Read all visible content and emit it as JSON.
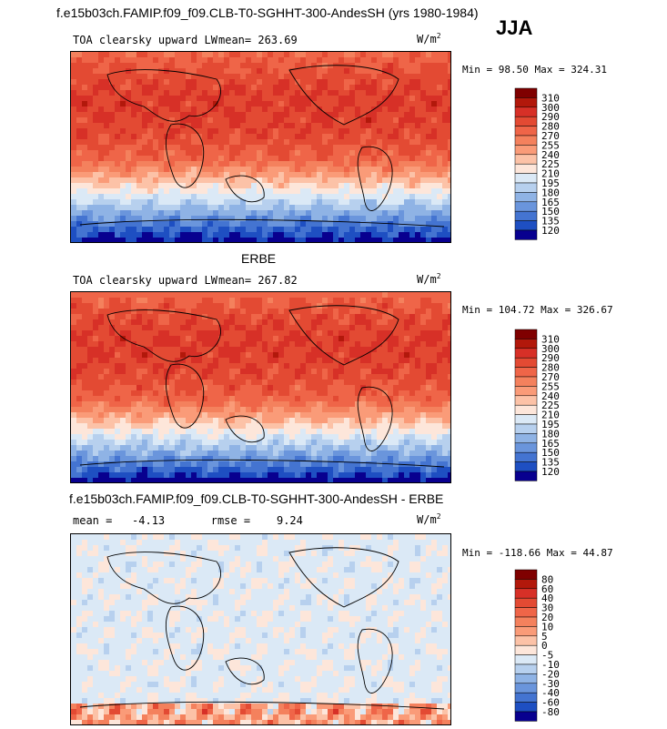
{
  "header": {
    "title": "f.e15b03ch.FAMIP.f09_f09.CLB-T0-SGHHT-300-AndesSH (yrs 1980-1984)",
    "season": "JJA"
  },
  "panels": [
    {
      "id": "model",
      "section_title": "",
      "variable": "TOA clearsky upward LW",
      "stat_text": "mean= 263.69",
      "units": "W/m",
      "units_sup": "2",
      "minmax": "Min =  98.50 Max = 324.31",
      "colorbar": {
        "labels": [
          "310",
          "300",
          "290",
          "280",
          "270",
          "255",
          "240",
          "225",
          "210",
          "195",
          "180",
          "165",
          "150",
          "135",
          "120"
        ],
        "colors": [
          "#7f0000",
          "#b2180b",
          "#d73027",
          "#e34a33",
          "#ef6548",
          "#f4815d",
          "#fa9b78",
          "#fcc2a7",
          "#fde6da",
          "#dbe9f6",
          "#b7d0ee",
          "#8fb3e5",
          "#6a95dc",
          "#4474d1",
          "#1e4fc2",
          "#08008f"
        ]
      },
      "chart_data": {
        "type": "heatmap",
        "title": "TOA clearsky upward LW",
        "xlabel": "",
        "ylabel": "",
        "mean": 263.69,
        "min": 98.5,
        "max": 324.31
      }
    },
    {
      "id": "obs",
      "section_title": "ERBE",
      "variable": "TOA clearsky upward LW",
      "stat_text": "mean= 267.82",
      "units": "W/m",
      "units_sup": "2",
      "minmax": "Min = 104.72 Max = 326.67",
      "colorbar": {
        "labels": [
          "310",
          "300",
          "290",
          "280",
          "270",
          "255",
          "240",
          "225",
          "210",
          "195",
          "180",
          "165",
          "150",
          "135",
          "120"
        ],
        "colors": [
          "#7f0000",
          "#b2180b",
          "#d73027",
          "#e34a33",
          "#ef6548",
          "#f4815d",
          "#fa9b78",
          "#fcc2a7",
          "#fde6da",
          "#dbe9f6",
          "#b7d0ee",
          "#8fb3e5",
          "#6a95dc",
          "#4474d1",
          "#1e4fc2",
          "#08008f"
        ]
      },
      "chart_data": {
        "type": "heatmap",
        "title": "TOA clearsky upward LW",
        "xlabel": "",
        "ylabel": "",
        "mean": 267.82,
        "min": 104.72,
        "max": 326.67
      }
    },
    {
      "id": "diff",
      "section_title": "f.e15b03ch.FAMIP.f09_f09.CLB-T0-SGHHT-300-AndesSH - ERBE",
      "variable": "",
      "stat_text": "mean =   -4.13       rmse =    9.24",
      "units": "W/m",
      "units_sup": "2",
      "minmax": "Min = -118.66 Max =  44.87",
      "colorbar": {
        "labels": [
          "80",
          "60",
          "40",
          "30",
          "20",
          "10",
          "5",
          "0",
          "-5",
          "-10",
          "-20",
          "-30",
          "-40",
          "-60",
          "-80"
        ],
        "colors": [
          "#7f0000",
          "#b2180b",
          "#d73027",
          "#e34a33",
          "#ef6548",
          "#f4815d",
          "#fa9b78",
          "#fcc2a7",
          "#fde6da",
          "#dbe9f6",
          "#b7d0ee",
          "#8fb3e5",
          "#6a95dc",
          "#4474d1",
          "#1e4fc2",
          "#08008f"
        ]
      },
      "chart_data": {
        "type": "heatmap",
        "title": "",
        "xlabel": "",
        "ylabel": "",
        "mean": -4.13,
        "rmse": 9.24,
        "min": -118.66,
        "max": 44.87
      }
    }
  ]
}
